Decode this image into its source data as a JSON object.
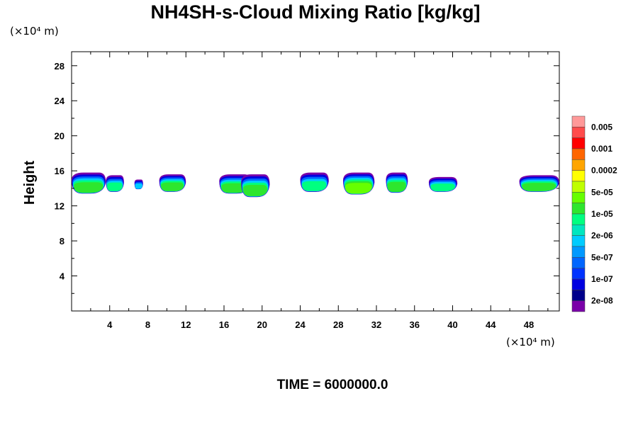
{
  "chart_data": {
    "type": "heatmap",
    "title": "NH4SH-s-Cloud Mixing Ratio [kg/kg]",
    "ylabel": "Height",
    "y_unit": "(×10⁴ m)",
    "x_unit": "(×10⁴ m)",
    "xlim": [
      0,
      51.2
    ],
    "ylim": [
      0,
      29.6
    ],
    "x_ticks": [
      4,
      8,
      12,
      16,
      20,
      24,
      28,
      32,
      36,
      40,
      44,
      48
    ],
    "x_tick_labels": [
      "4",
      "8",
      "12",
      "16",
      "20",
      "24",
      "28",
      "32",
      "36",
      "40",
      "44",
      "48"
    ],
    "y_ticks": [
      4,
      8,
      12,
      16,
      20,
      24,
      28
    ],
    "y_tick_labels": [
      "4",
      "8",
      "12",
      "16",
      "20",
      "24",
      "28"
    ],
    "footer": "TIME = 6000000.0",
    "colorbar": {
      "labels": [
        "0.005",
        "0.001",
        "0.0002",
        "5e-05",
        "1e-05",
        "2e-06",
        "5e-07",
        "1e-07",
        "2e-08"
      ],
      "colors_top_to_bottom": [
        "#ff9999",
        "#ff4c4c",
        "#ff0000",
        "#ff6600",
        "#ffa500",
        "#ffff00",
        "#bfff00",
        "#66ff00",
        "#2ee62e",
        "#00ff80",
        "#00e6bf",
        "#00ccff",
        "#0099ff",
        "#0066ff",
        "#0033ff",
        "#0000e0",
        "#00008b",
        "#7a00a8"
      ]
    },
    "clouds": [
      {
        "x0": 0.0,
        "x1": 3.6,
        "ybot": 13.4,
        "ytop": 15.8,
        "core": 6
      },
      {
        "x0": 3.6,
        "x1": 5.5,
        "ybot": 13.6,
        "ytop": 15.5,
        "core": 5
      },
      {
        "x0": 6.6,
        "x1": 7.5,
        "ybot": 13.9,
        "ytop": 15.0,
        "core": 4
      },
      {
        "x0": 9.2,
        "x1": 12.0,
        "ybot": 13.6,
        "ytop": 15.6,
        "core": 6
      },
      {
        "x0": 15.5,
        "x1": 18.8,
        "ybot": 13.4,
        "ytop": 15.6,
        "core": 6
      },
      {
        "x0": 17.8,
        "x1": 20.8,
        "ybot": 13.0,
        "ytop": 15.6,
        "core": 6
      },
      {
        "x0": 24.0,
        "x1": 27.0,
        "ybot": 13.6,
        "ytop": 15.8,
        "core": 5
      },
      {
        "x0": 28.5,
        "x1": 31.8,
        "ybot": 13.3,
        "ytop": 15.8,
        "core": 7
      },
      {
        "x0": 33.0,
        "x1": 35.3,
        "ybot": 13.5,
        "ytop": 15.8,
        "core": 6
      },
      {
        "x0": 37.5,
        "x1": 40.5,
        "ybot": 13.6,
        "ytop": 15.3,
        "core": 5
      },
      {
        "x0": 47.0,
        "x1": 51.2,
        "ybot": 13.6,
        "ytop": 15.5,
        "core": 6
      }
    ]
  }
}
